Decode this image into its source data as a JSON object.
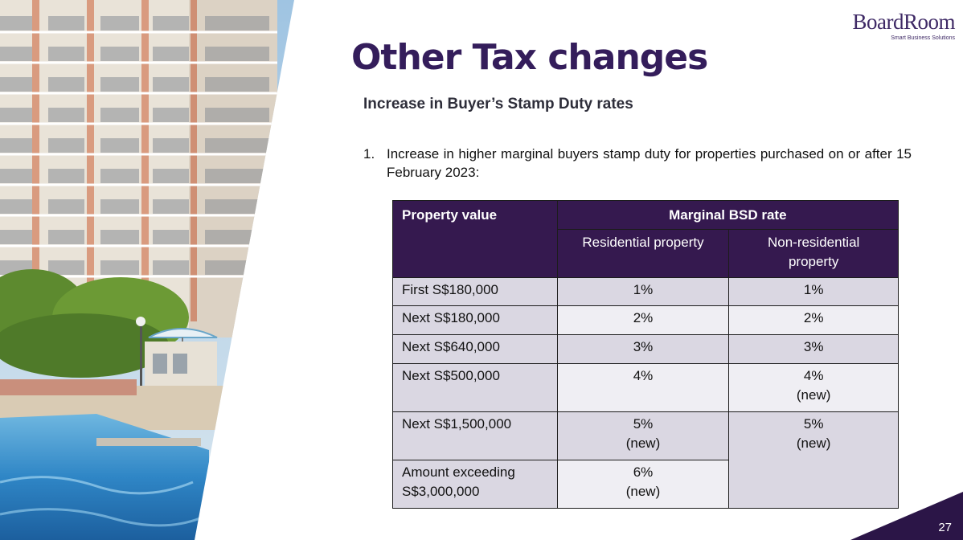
{
  "logo": {
    "name": "BoardRoom",
    "tagline": "Smart Business Solutions"
  },
  "title": "Other Tax changes",
  "subtitle": "Increase in Buyer’s Stamp Duty rates",
  "point": {
    "number": "1.",
    "text": "Increase in higher marginal buyers stamp duty for properties purchased on or after 15 February 2023:"
  },
  "table": {
    "header_property": "Property value",
    "header_rate": "Marginal BSD rate",
    "header_residential": "Residential property",
    "header_nonresidential": "Non-residential property",
    "rows": [
      {
        "label": "First S$180,000",
        "residential": "1%",
        "nonresidential": "1%"
      },
      {
        "label": "Next S$180,000",
        "residential": "2%",
        "nonresidential": "2%"
      },
      {
        "label": "Next S$640,000",
        "residential": "3%",
        "nonresidential": "3%"
      },
      {
        "label": "Next S$500,000",
        "residential": "4%",
        "nonresidential": "4%",
        "nonresidential_note": "(new)"
      },
      {
        "label": "Next S$1,500,000",
        "residential": "5%",
        "residential_note": "(new)",
        "nonresidential": "5%",
        "nonresidential_note": "(new)"
      },
      {
        "label": "Amount exceeding S$3,000,000",
        "residential": "6%",
        "residential_note": "(new)"
      }
    ]
  },
  "page_number": "27",
  "colors": {
    "brand_purple": "#35194f",
    "row_shade": "#dad7e2",
    "corner": "#2b1547"
  }
}
